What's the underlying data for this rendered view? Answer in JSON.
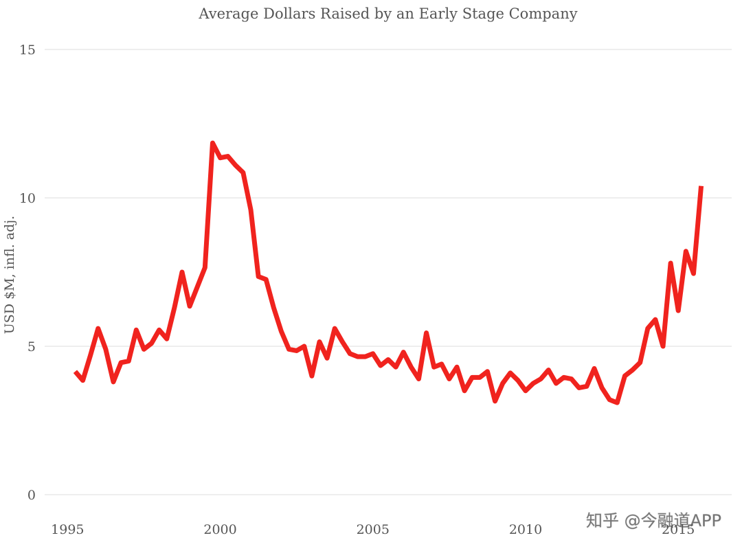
{
  "chart_data": {
    "type": "line",
    "title": "Average Dollars Raised by an Early Stage Company",
    "y_label": "USD $M, infl. adj.",
    "watermark": "知乎 @今融道APP",
    "x": [
      1995.25,
      1995.5,
      1995.75,
      1996,
      1996.25,
      1996.5,
      1996.75,
      1997,
      1997.25,
      1997.5,
      1997.75,
      1998,
      1998.25,
      1998.5,
      1998.75,
      1999,
      1999.25,
      1999.5,
      1999.75,
      2000,
      2000.25,
      2000.5,
      2000.75,
      2001,
      2001.25,
      2001.5,
      2001.75,
      2002,
      2002.25,
      2002.5,
      2002.75,
      2003,
      2003.25,
      2003.5,
      2003.75,
      2004,
      2004.25,
      2004.5,
      2004.75,
      2005,
      2005.25,
      2005.5,
      2005.75,
      2006,
      2006.25,
      2006.5,
      2006.75,
      2007,
      2007.25,
      2007.5,
      2007.75,
      2008,
      2008.25,
      2008.5,
      2008.75,
      2009,
      2009.25,
      2009.5,
      2009.75,
      2010,
      2010.25,
      2010.5,
      2010.75,
      2011,
      2011.25,
      2011.5,
      2011.75,
      2012,
      2012.25,
      2012.5,
      2012.75,
      2013,
      2013.25,
      2013.5,
      2013.75,
      2014,
      2014.25,
      2014.5,
      2014.75,
      2015,
      2015.25,
      2015.5,
      2015.75
    ],
    "series": [
      {
        "name": "Average dollars raised",
        "color": "#f0231e",
        "values": [
          4.15,
          3.85,
          4.7,
          5.6,
          4.9,
          3.8,
          4.45,
          4.5,
          5.55,
          4.9,
          5.1,
          5.55,
          5.25,
          6.3,
          7.5,
          6.35,
          7.0,
          7.65,
          11.85,
          11.35,
          11.4,
          11.1,
          10.85,
          9.6,
          7.35,
          7.25,
          6.3,
          5.5,
          4.9,
          4.85,
          5.0,
          4.0,
          5.15,
          4.6,
          5.6,
          5.15,
          4.75,
          4.65,
          4.65,
          4.75,
          4.35,
          4.55,
          4.3,
          4.8,
          4.3,
          3.9,
          5.45,
          4.3,
          4.4,
          3.9,
          4.3,
          3.5,
          3.95,
          3.95,
          4.15,
          3.15,
          3.75,
          4.1,
          3.85,
          3.5,
          3.75,
          3.9,
          4.2,
          3.75,
          3.95,
          3.9,
          3.6,
          3.65,
          4.25,
          3.6,
          3.2,
          3.1,
          4.0,
          4.2,
          4.45,
          5.6,
          5.9,
          5.0,
          7.8,
          6.2,
          8.2,
          7.45,
          10.4
        ]
      }
    ],
    "xlim": [
      1994.25,
      2016.75
    ],
    "xticks": [
      1995,
      2000,
      2005,
      2010,
      2015
    ],
    "ylim": [
      0,
      15
    ],
    "yticks": [
      0,
      5,
      10,
      15
    ],
    "grid": true
  }
}
